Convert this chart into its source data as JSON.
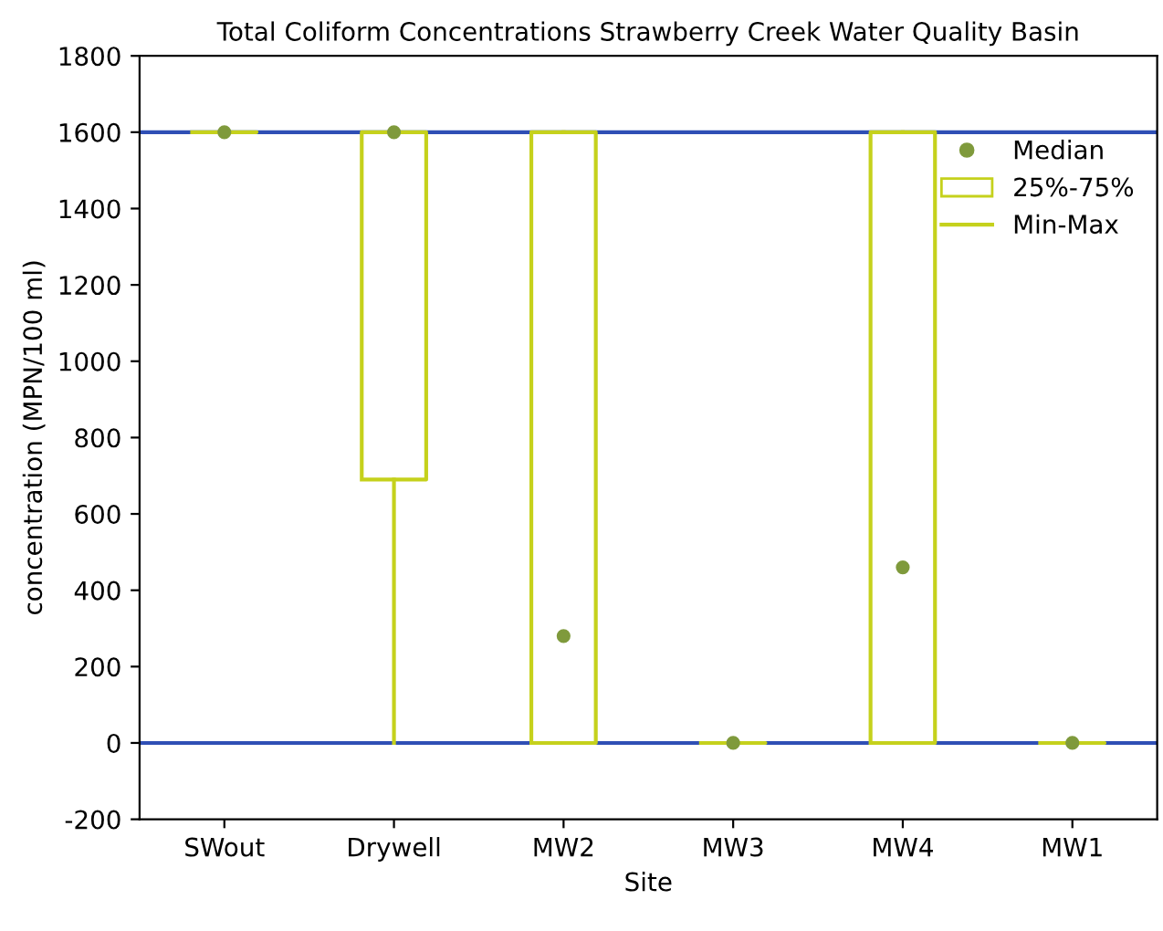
{
  "chart_data": {
    "type": "box",
    "title": "Total Coliform Concentrations Strawberry Creek Water Quality Basin",
    "xlabel": "Site",
    "ylabel": "concentration (MPN/100 ml)",
    "categories": [
      "SWout",
      "Drywell",
      "MW2",
      "MW3",
      "MW4",
      "MW1"
    ],
    "series": [
      {
        "type": "scatter",
        "name": "Median",
        "color": "#7f9a3c",
        "marker": "circle",
        "x": [
          "SWout",
          "Drywell",
          "MW2",
          "MW3",
          "MW4",
          "MW1"
        ],
        "values": [
          1600,
          1600,
          280,
          0,
          460,
          0
        ]
      },
      {
        "name": "25%-75%",
        "color": "#c5d11c",
        "boxes": [
          {
            "low": 1600,
            "q1": 1600,
            "q3": 1600,
            "high": 1600
          },
          {
            "low": 0,
            "q1": 690,
            "q3": 1600,
            "high": 1600
          },
          {
            "low": 0,
            "q1": 0,
            "q3": 1600,
            "high": 1600
          },
          {
            "low": 0,
            "q1": 0,
            "q3": 0,
            "high": 0
          },
          {
            "low": 0,
            "q1": 0,
            "q3": 1600,
            "high": 1600
          },
          {
            "low": 0,
            "q1": 0,
            "q3": 0,
            "high": 0
          }
        ]
      }
    ],
    "ref_lines": [
      {
        "axis": "y",
        "value": 1600,
        "color": "#2f4fb5"
      },
      {
        "axis": "y",
        "value": 0,
        "color": "#2f4fb5"
      }
    ],
    "annotations": [
      "Min-Max"
    ],
    "ylim": [
      -200,
      1800
    ],
    "yticks": [
      -200,
      0,
      200,
      400,
      600,
      800,
      1000,
      1200,
      1400,
      1600,
      1800
    ],
    "grid": false,
    "legend": "top right"
  }
}
